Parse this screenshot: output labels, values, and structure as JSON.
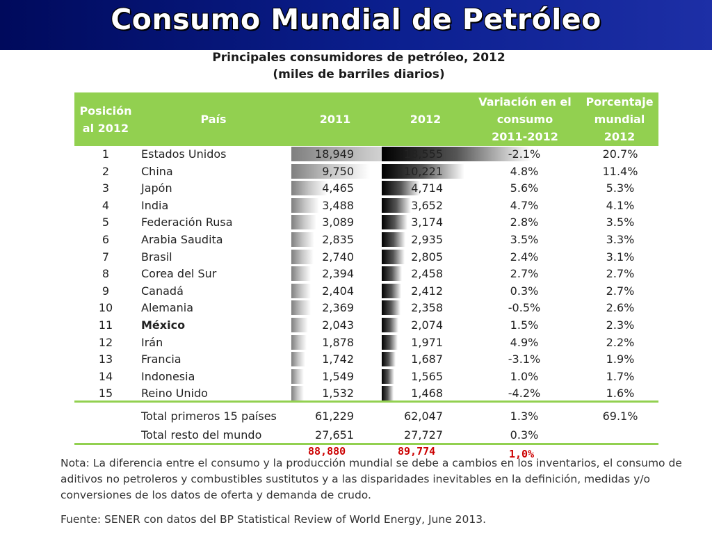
{
  "slide_title": "Consumo Mundial de Petróleo",
  "table_title": {
    "line1": "Principales consumidores de petróleo, 2012",
    "line2": "(miles de barriles diarios)"
  },
  "headers": {
    "posicion": [
      "Posición",
      "al 2012"
    ],
    "pais": "País",
    "y2011": "2011",
    "y2012": "2012",
    "variacion": [
      "Variación en el",
      "consumo",
      "2011-2012"
    ],
    "porcentaje": [
      "Porcentaje",
      "mundial",
      "2012"
    ]
  },
  "rows": [
    {
      "pos": "1",
      "pais": "Estados Unidos",
      "v2011": "18,949",
      "v2012": "18,555",
      "var": "-2.1%",
      "pct": "20.7%",
      "bar2011": 18949,
      "bar2012": 18555,
      "bold": false
    },
    {
      "pos": "2",
      "pais": "China",
      "v2011": "9,750",
      "v2012": "10,221",
      "var": "4.8%",
      "pct": "11.4%",
      "bar2011": 9750,
      "bar2012": 10221,
      "bold": false
    },
    {
      "pos": "3",
      "pais": "Japón",
      "v2011": "4,465",
      "v2012": "4,714",
      "var": "5.6%",
      "pct": "5.3%",
      "bar2011": 4465,
      "bar2012": 4714,
      "bold": false
    },
    {
      "pos": "4",
      "pais": "India",
      "v2011": "3,488",
      "v2012": "3,652",
      "var": "4.7%",
      "pct": "4.1%",
      "bar2011": 3488,
      "bar2012": 3652,
      "bold": false
    },
    {
      "pos": "5",
      "pais": "Federación Rusa",
      "v2011": "3,089",
      "v2012": "3,174",
      "var": "2.8%",
      "pct": "3.5%",
      "bar2011": 3089,
      "bar2012": 3174,
      "bold": false
    },
    {
      "pos": "6",
      "pais": "Arabia Saudita",
      "v2011": "2,835",
      "v2012": "2,935",
      "var": "3.5%",
      "pct": "3.3%",
      "bar2011": 2835,
      "bar2012": 2935,
      "bold": false
    },
    {
      "pos": "7",
      "pais": "Brasil",
      "v2011": "2,740",
      "v2012": "2,805",
      "var": "2.4%",
      "pct": "3.1%",
      "bar2011": 2740,
      "bar2012": 2805,
      "bold": false
    },
    {
      "pos": "8",
      "pais": "Corea del Sur",
      "v2011": "2,394",
      "v2012": "2,458",
      "var": "2.7%",
      "pct": "2.7%",
      "bar2011": 2394,
      "bar2012": 2458,
      "bold": false
    },
    {
      "pos": "9",
      "pais": "Canadá",
      "v2011": "2,404",
      "v2012": "2,412",
      "var": "0.3%",
      "pct": "2.7%",
      "bar2011": 2404,
      "bar2012": 2412,
      "bold": false
    },
    {
      "pos": "10",
      "pais": "Alemania",
      "v2011": "2,369",
      "v2012": "2,358",
      "var": "-0.5%",
      "pct": "2.6%",
      "bar2011": 2369,
      "bar2012": 2358,
      "bold": false
    },
    {
      "pos": "11",
      "pais": "México",
      "v2011": "2,043",
      "v2012": "2,074",
      "var": "1.5%",
      "pct": "2.3%",
      "bar2011": 2043,
      "bar2012": 2074,
      "bold": true
    },
    {
      "pos": "12",
      "pais": "Irán",
      "v2011": "1,878",
      "v2012": "1,971",
      "var": "4.9%",
      "pct": "2.2%",
      "bar2011": 1878,
      "bar2012": 1971,
      "bold": false
    },
    {
      "pos": "13",
      "pais": "Francia",
      "v2011": "1,742",
      "v2012": "1,687",
      "var": "-3.1%",
      "pct": "1.9%",
      "bar2011": 1742,
      "bar2012": 1687,
      "bold": false
    },
    {
      "pos": "14",
      "pais": "Indonesia",
      "v2011": "1,549",
      "v2012": "1,565",
      "var": "1.0%",
      "pct": "1.7%",
      "bar2011": 1549,
      "bar2012": 1565,
      "bold": false
    },
    {
      "pos": "15",
      "pais": "Reino Unido",
      "v2011": "1,532",
      "v2012": "1,468",
      "var": "-4.2%",
      "pct": "1.6%",
      "bar2011": 1532,
      "bar2012": 1468,
      "bold": false
    }
  ],
  "totals": [
    {
      "label": "Total primeros 15 países",
      "v2011": "61,229",
      "v2012": "62,047",
      "var": "1.3%",
      "pct": "69.1%"
    },
    {
      "label": "Total resto del mundo",
      "v2011": "27,651",
      "v2012": "27,727",
      "var": "0.3%",
      "pct": ""
    }
  ],
  "handwritten_totals": {
    "v2011": "88,880",
    "v2012": "89,774",
    "var": "1,0%"
  },
  "note": [
    "Nota: La diferencia entre el consumo y la producción mundial se debe a cambios en los inventarios, el consumo de",
    "aditivos no petroleros y combustibles sustitutos y a las disparidades inevitables en la definición, medidas y/o",
    "conversiones de los datos de oferta y demanda de crudo."
  ],
  "source": "Fuente: SENER con datos del BP Statistical Review of World Energy, June 2013.",
  "colors": {
    "header_green": "#92d050",
    "banner_blue": "#0b1f8f",
    "handwritten_red": "#cc0000"
  }
}
